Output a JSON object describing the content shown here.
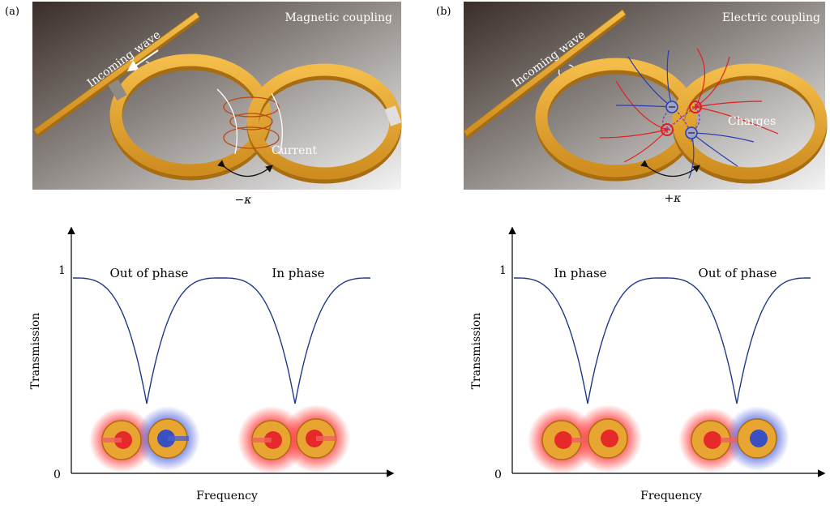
{
  "panel_a": {
    "label": "(a)",
    "title": "Magnetic coupling",
    "wave_label": "Incoming wave",
    "current_label": "Current",
    "kappa_label": "−κ"
  },
  "panel_b": {
    "label": "(b)",
    "title": "Electric coupling",
    "wave_label": "Incoming wave",
    "charges_label": "Charges",
    "kappa_label": "+κ"
  },
  "plot_left": {
    "ylabel": "Transmission",
    "xlabel": "Frequency",
    "y_tick_top": "1",
    "y_tick_bottom": "0",
    "dip1_label": "Out of phase",
    "dip2_label": "In phase"
  },
  "plot_right": {
    "ylabel": "Transmission",
    "xlabel": "Frequency",
    "y_tick_top": "1",
    "y_tick_bottom": "0",
    "dip1_label": "In phase",
    "dip2_label": "Out of phase"
  },
  "colors": {
    "gold": "#e8a531",
    "gold_dark": "#b07a14",
    "curve": "#1f3a8a",
    "red_glow": "#ff3030",
    "blue_glow": "#4050d0",
    "field_red": "#e02020",
    "field_blue": "#2a3fb0"
  }
}
